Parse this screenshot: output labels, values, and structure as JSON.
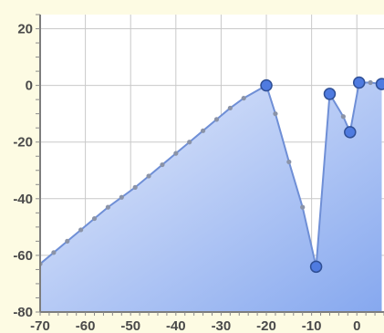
{
  "chart_data": {
    "type": "area",
    "title": "",
    "xlabel": "",
    "ylabel": "",
    "xlim": [
      -70,
      6
    ],
    "ylim": [
      -80,
      25
    ],
    "grid": true,
    "x_ticks": [
      -70,
      -60,
      -50,
      -40,
      -30,
      -20,
      -10,
      0
    ],
    "y_ticks": [
      -80,
      -60,
      -40,
      -20,
      0,
      20
    ],
    "x_tick_labels": [
      "-70",
      "-60",
      "-50",
      "-40",
      "-30",
      "-20",
      "-10",
      "0"
    ],
    "y_tick_labels": [
      "-80",
      "-60",
      "-40",
      "-20",
      "0",
      "20"
    ],
    "series": [
      {
        "fill_color": "#7fa3ec",
        "line_color": "#6f8fd6",
        "marker_color": "#4f7be0",
        "points": [
          {
            "x": -70,
            "y": -63,
            "major": false
          },
          {
            "x": -67,
            "y": -59,
            "major": false
          },
          {
            "x": -64,
            "y": -55,
            "major": false
          },
          {
            "x": -61,
            "y": -51,
            "major": false
          },
          {
            "x": -58,
            "y": -47,
            "major": false
          },
          {
            "x": -55,
            "y": -43,
            "major": false
          },
          {
            "x": -52,
            "y": -39.5,
            "major": false
          },
          {
            "x": -49,
            "y": -36,
            "major": false
          },
          {
            "x": -46,
            "y": -32,
            "major": false
          },
          {
            "x": -43,
            "y": -28,
            "major": false
          },
          {
            "x": -40,
            "y": -24,
            "major": false
          },
          {
            "x": -37,
            "y": -20,
            "major": false
          },
          {
            "x": -34,
            "y": -16,
            "major": false
          },
          {
            "x": -31,
            "y": -12,
            "major": false
          },
          {
            "x": -28,
            "y": -8,
            "major": false
          },
          {
            "x": -25,
            "y": -4.5,
            "major": false
          },
          {
            "x": -20,
            "y": 0,
            "major": true
          },
          {
            "x": -18,
            "y": -10,
            "major": false
          },
          {
            "x": -15,
            "y": -27,
            "major": false
          },
          {
            "x": -12,
            "y": -43,
            "major": false
          },
          {
            "x": -9,
            "y": -64,
            "major": true
          },
          {
            "x": -6,
            "y": -3,
            "major": true
          },
          {
            "x": -3,
            "y": -11,
            "major": false
          },
          {
            "x": -1.5,
            "y": -16.5,
            "major": true
          },
          {
            "x": 0.5,
            "y": 1,
            "major": true
          },
          {
            "x": 3,
            "y": 1,
            "major": false
          },
          {
            "x": 5.5,
            "y": 0.5,
            "major": true
          }
        ]
      }
    ]
  }
}
